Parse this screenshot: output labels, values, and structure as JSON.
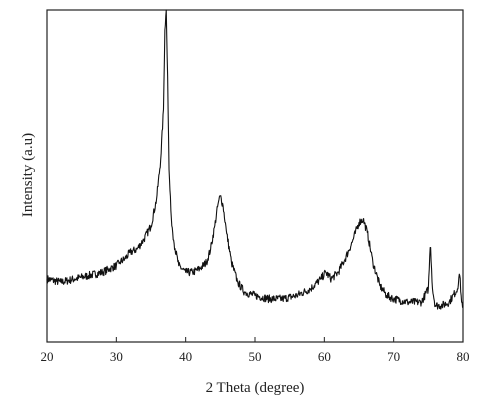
{
  "chart_data": {
    "type": "line",
    "title": "",
    "xlabel": "2 Theta (degree)",
    "ylabel": "Intensity (a.u)",
    "xlim": [
      20,
      80
    ],
    "ylim": [
      0,
      100
    ],
    "x_ticks": [
      20,
      30,
      40,
      50,
      60,
      70,
      80
    ],
    "x_tick_labels": [
      "20",
      "30",
      "40",
      "50",
      "60",
      "70",
      "80"
    ],
    "y_ticks_shown": false,
    "grid": false,
    "legend": "none",
    "line_color": "#111111",
    "series": [
      {
        "x": [
          20,
          22,
          24,
          26,
          28,
          29,
          30,
          30.5,
          31.2,
          32,
          33,
          34,
          35,
          35.8,
          36.4,
          36.8,
          37.0,
          37.2,
          37.4,
          37.6,
          37.9,
          38.3,
          39,
          40,
          41,
          42,
          43,
          43.6,
          44.2,
          44.7,
          45.0,
          45.4,
          45.9,
          46.6,
          47.5,
          48.5,
          50,
          52,
          54,
          56,
          58,
          59.5,
          60.2,
          61,
          62,
          63,
          64,
          65,
          65.6,
          66.2,
          67,
          68,
          69,
          70,
          72,
          74,
          75.0,
          75.3,
          75.6,
          76,
          77,
          78,
          79.2,
          79.5,
          79.8,
          80
        ],
        "y": [
          19,
          18,
          19,
          20,
          21,
          22,
          23,
          24,
          25,
          27,
          28,
          31,
          35,
          43,
          55,
          70,
          94,
          100,
          80,
          52,
          38,
          30,
          23,
          21,
          21,
          22,
          24,
          28,
          35,
          42,
          44,
          41,
          33,
          24,
          18,
          15,
          14,
          13,
          13,
          14,
          16,
          19,
          21,
          19,
          21,
          25,
          30,
          36,
          37,
          33,
          24,
          17,
          14,
          13,
          12,
          12,
          16,
          30,
          16,
          11,
          11,
          12,
          16,
          21,
          12,
          11
        ]
      }
    ]
  }
}
